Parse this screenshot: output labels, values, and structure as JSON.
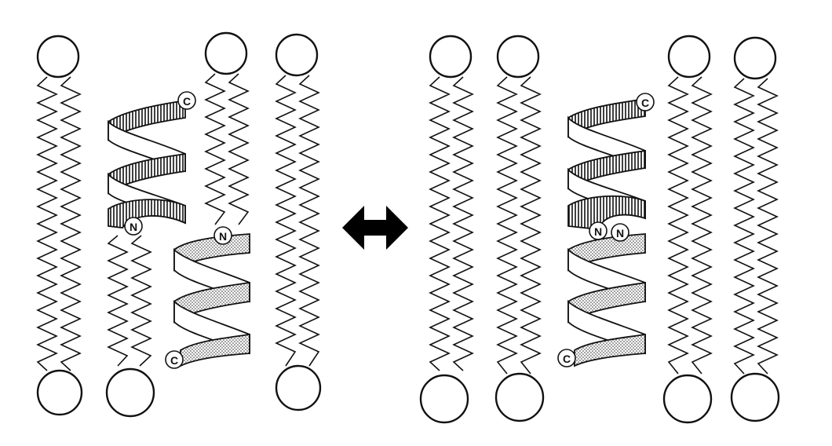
{
  "figure": {
    "panels": [
      {
        "id": "left",
        "state": "dissociated",
        "helices": [
          {
            "id": "upper",
            "pattern": "hatched",
            "turns": 3,
            "top_terminus": "C",
            "bottom_terminus": "N"
          },
          {
            "id": "lower",
            "pattern": "dotted",
            "turns": 3,
            "top_terminus": "N",
            "bottom_terminus": "C"
          }
        ]
      },
      {
        "id": "right",
        "state": "dimerized",
        "helices": [
          {
            "id": "upper",
            "pattern": "hatched",
            "turns": 3,
            "top_terminus": "C",
            "bottom_terminus": "N"
          },
          {
            "id": "lower",
            "pattern": "dotted",
            "turns": 3,
            "top_terminus": "N",
            "bottom_terminus": "C"
          }
        ]
      }
    ],
    "center_symbol": "double-headed-arrow",
    "colors": {
      "line": "#111111",
      "fill": "#ffffff"
    }
  }
}
